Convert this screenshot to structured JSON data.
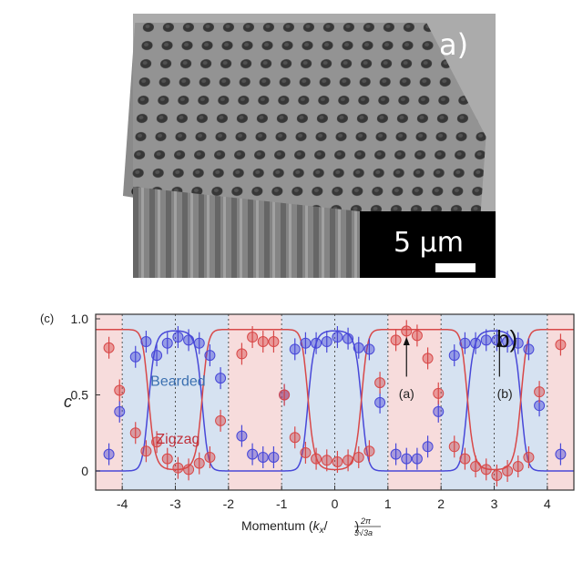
{
  "panel_a": {
    "label": "a)",
    "scale_bar_label": "5 µm"
  },
  "panel_b": {
    "corner_label": "(c)",
    "panel_label": "b)"
  },
  "colors": {
    "bearded": "#4848d8",
    "zigzag": "#d84848",
    "bearded_label": "#3a6fb0",
    "zigzag_label": "#c0303a",
    "blue_shade": "#d6e2f1",
    "red_shade": "#f7dcdc"
  },
  "chart_data": {
    "type": "scatter",
    "title": "",
    "xlabel": "Momentum (k_x / (2π / 3√3a))",
    "xlabel_parts": {
      "prefix": "Momentum (",
      "k": "k",
      "sub": "x",
      "frac_num": "2π",
      "frac_den": "3√3a",
      "suffix": ")"
    },
    "ylabel": "c",
    "xlim": [
      -4.5,
      4.5
    ],
    "ylim": [
      -0.05,
      1.0
    ],
    "xticks": [
      -4,
      -3,
      -2,
      -1,
      0,
      1,
      2,
      3,
      4
    ],
    "xtick_labels": [
      "-4",
      "-3",
      "-2",
      "-1",
      "0",
      "1",
      "2",
      "3",
      "4"
    ],
    "yticks": [
      0,
      0.5,
      1.0
    ],
    "ytick_labels": [
      "0",
      "0.5",
      "1.0"
    ],
    "dotted_vlines": [
      -4,
      -3,
      -2,
      -1,
      0,
      1,
      2,
      3,
      4
    ],
    "shaded_regions": [
      {
        "from": -4.5,
        "to": -4.0,
        "color": "red"
      },
      {
        "from": -4.0,
        "to": -2.0,
        "color": "blue"
      },
      {
        "from": -2.0,
        "to": -1.0,
        "color": "red"
      },
      {
        "from": -1.0,
        "to": 1.0,
        "color": "blue"
      },
      {
        "from": 1.0,
        "to": 2.0,
        "color": "red"
      },
      {
        "from": 2.0,
        "to": 4.0,
        "color": "blue"
      },
      {
        "from": 4.0,
        "to": 4.5,
        "color": "red"
      }
    ],
    "annotations": [
      {
        "text": "Bearded",
        "x": -2.95,
        "y": 0.56,
        "color": "bearded_label"
      },
      {
        "text": "Zigzag",
        "x": -2.95,
        "y": 0.18,
        "color": "zigzag_label"
      },
      {
        "text": "(a)",
        "x": 1.35,
        "y": 0.48,
        "arrow_from": [
          1.35,
          0.62
        ],
        "arrow_to": [
          1.35,
          0.85
        ]
      },
      {
        "text": "(b)",
        "x": 3.2,
        "y": 0.48,
        "arrow_from": [
          3.1,
          0.62
        ],
        "arrow_to": [
          3.1,
          0.84
        ]
      }
    ],
    "series": [
      {
        "name": "Bearded",
        "color": "bearded",
        "x": [
          -4.25,
          -4.05,
          -3.75,
          -3.55,
          -3.35,
          -3.15,
          -2.95,
          -2.75,
          -2.55,
          -2.35,
          -2.15,
          -1.75,
          -1.55,
          -1.35,
          -1.15,
          -0.95,
          -0.75,
          -0.55,
          -0.35,
          -0.15,
          0.05,
          0.25,
          0.45,
          0.65,
          0.85,
          1.15,
          1.35,
          1.55,
          1.75,
          1.95,
          2.25,
          2.45,
          2.65,
          2.85,
          3.05,
          3.25,
          3.45,
          3.65,
          3.85,
          4.25
        ],
        "y": [
          0.11,
          0.39,
          0.75,
          0.85,
          0.76,
          0.84,
          0.88,
          0.86,
          0.84,
          0.76,
          0.61,
          0.23,
          0.11,
          0.09,
          0.09,
          0.5,
          0.8,
          0.84,
          0.84,
          0.85,
          0.88,
          0.87,
          0.81,
          0.8,
          0.45,
          0.11,
          0.08,
          0.08,
          0.16,
          0.39,
          0.76,
          0.84,
          0.84,
          0.86,
          0.86,
          0.85,
          0.84,
          0.8,
          0.43,
          0.11
        ],
        "fit": "bearded"
      },
      {
        "name": "Zigzag",
        "color": "zigzag",
        "x": [
          -4.25,
          -4.05,
          -3.75,
          -3.55,
          -3.35,
          -3.15,
          -2.95,
          -2.75,
          -2.55,
          -2.35,
          -2.15,
          -1.75,
          -1.55,
          -1.35,
          -1.15,
          -0.95,
          -0.75,
          -0.55,
          -0.35,
          -0.15,
          0.05,
          0.25,
          0.45,
          0.65,
          0.85,
          1.15,
          1.35,
          1.55,
          1.75,
          1.95,
          2.25,
          2.45,
          2.65,
          2.85,
          3.05,
          3.25,
          3.45,
          3.65,
          3.85,
          4.25
        ],
        "y": [
          0.81,
          0.53,
          0.25,
          0.13,
          0.19,
          0.08,
          0.02,
          0.01,
          0.05,
          0.09,
          0.33,
          0.77,
          0.88,
          0.85,
          0.85,
          0.5,
          0.22,
          0.12,
          0.08,
          0.07,
          0.06,
          0.07,
          0.09,
          0.13,
          0.58,
          0.86,
          0.92,
          0.89,
          0.74,
          0.51,
          0.16,
          0.08,
          0.03,
          0.01,
          -0.03,
          0.0,
          0.03,
          0.09,
          0.52,
          0.83
        ],
        "fit": "zigzag"
      }
    ],
    "fit_curves": [
      {
        "name": "bearded",
        "color": "bearded",
        "min": 0.0,
        "max": 0.93
      },
      {
        "name": "zigzag",
        "color": "zigzag",
        "min": 0.0,
        "max": 0.93
      }
    ],
    "grid": false,
    "legend": "none"
  }
}
